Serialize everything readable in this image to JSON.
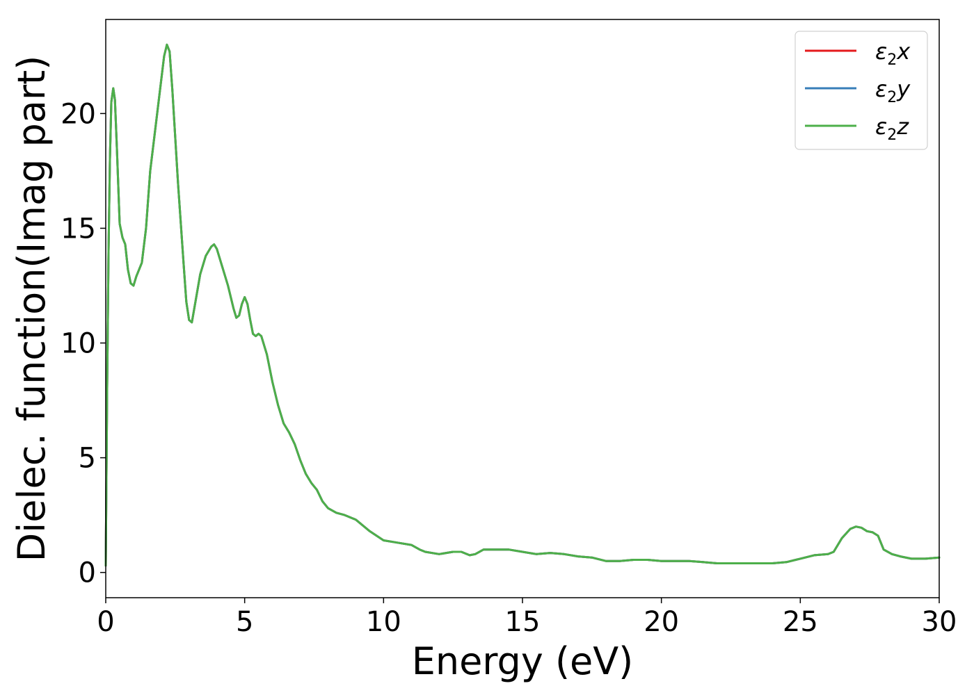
{
  "chart_data": {
    "type": "line",
    "xlabel": "Energy (eV)",
    "ylabel": "Dielec. function(Imag part)",
    "xlim": [
      0,
      30
    ],
    "ylim": [
      -1.1,
      24.1
    ],
    "xticks": [
      0,
      5,
      10,
      15,
      20,
      25,
      30
    ],
    "yticks": [
      0,
      5,
      10,
      15,
      20
    ],
    "grid": false,
    "legend_position": "top-right",
    "series": [
      {
        "name": "ε2x",
        "name_base": "ε",
        "name_sub": "2",
        "name_var": "x",
        "color": "#e41a1c",
        "points": []
      },
      {
        "name": "ε2y",
        "name_base": "ε",
        "name_sub": "2",
        "name_var": "y",
        "color": "#377eb8",
        "points": []
      },
      {
        "name": "ε2z",
        "name_base": "ε",
        "name_sub": "2",
        "name_var": "z",
        "color": "#4daf4a",
        "points": [
          [
            0,
            0.3
          ],
          [
            0.05,
            8.0
          ],
          [
            0.1,
            14.0
          ],
          [
            0.15,
            18.0
          ],
          [
            0.2,
            20.5
          ],
          [
            0.27,
            21.1
          ],
          [
            0.33,
            20.6
          ],
          [
            0.4,
            18.5
          ],
          [
            0.5,
            15.2
          ],
          [
            0.6,
            14.6
          ],
          [
            0.7,
            14.3
          ],
          [
            0.8,
            13.2
          ],
          [
            0.9,
            12.6
          ],
          [
            1.0,
            12.5
          ],
          [
            1.1,
            12.9
          ],
          [
            1.3,
            13.5
          ],
          [
            1.45,
            15.0
          ],
          [
            1.6,
            17.5
          ],
          [
            1.8,
            19.5
          ],
          [
            2.0,
            21.5
          ],
          [
            2.1,
            22.5
          ],
          [
            2.2,
            23.0
          ],
          [
            2.3,
            22.7
          ],
          [
            2.4,
            21.0
          ],
          [
            2.6,
            17.0
          ],
          [
            2.8,
            13.5
          ],
          [
            2.9,
            11.8
          ],
          [
            3.0,
            11.0
          ],
          [
            3.1,
            10.9
          ],
          [
            3.2,
            11.6
          ],
          [
            3.4,
            13.0
          ],
          [
            3.6,
            13.8
          ],
          [
            3.8,
            14.2
          ],
          [
            3.9,
            14.3
          ],
          [
            4.0,
            14.1
          ],
          [
            4.2,
            13.3
          ],
          [
            4.4,
            12.5
          ],
          [
            4.6,
            11.5
          ],
          [
            4.7,
            11.1
          ],
          [
            4.8,
            11.2
          ],
          [
            4.9,
            11.7
          ],
          [
            5.0,
            12.0
          ],
          [
            5.1,
            11.7
          ],
          [
            5.2,
            11.0
          ],
          [
            5.3,
            10.4
          ],
          [
            5.4,
            10.3
          ],
          [
            5.5,
            10.4
          ],
          [
            5.6,
            10.3
          ],
          [
            5.8,
            9.5
          ],
          [
            6.0,
            8.3
          ],
          [
            6.2,
            7.3
          ],
          [
            6.4,
            6.5
          ],
          [
            6.6,
            6.1
          ],
          [
            6.8,
            5.6
          ],
          [
            7.0,
            4.9
          ],
          [
            7.2,
            4.3
          ],
          [
            7.4,
            3.9
          ],
          [
            7.6,
            3.6
          ],
          [
            7.8,
            3.1
          ],
          [
            8.0,
            2.8
          ],
          [
            8.3,
            2.6
          ],
          [
            8.6,
            2.5
          ],
          [
            9.0,
            2.3
          ],
          [
            9.5,
            1.8
          ],
          [
            10.0,
            1.4
          ],
          [
            10.5,
            1.3
          ],
          [
            11.0,
            1.2
          ],
          [
            11.3,
            1.0
          ],
          [
            11.5,
            0.9
          ],
          [
            12.0,
            0.8
          ],
          [
            12.5,
            0.9
          ],
          [
            12.8,
            0.9
          ],
          [
            13.1,
            0.75
          ],
          [
            13.3,
            0.8
          ],
          [
            13.6,
            1.0
          ],
          [
            14.0,
            1.0
          ],
          [
            14.5,
            1.0
          ],
          [
            15.0,
            0.9
          ],
          [
            15.5,
            0.8
          ],
          [
            16.0,
            0.85
          ],
          [
            16.5,
            0.8
          ],
          [
            17.0,
            0.7
          ],
          [
            17.5,
            0.65
          ],
          [
            18.0,
            0.5
          ],
          [
            18.5,
            0.5
          ],
          [
            19.0,
            0.55
          ],
          [
            19.5,
            0.55
          ],
          [
            20.0,
            0.5
          ],
          [
            20.5,
            0.5
          ],
          [
            21.0,
            0.5
          ],
          [
            21.5,
            0.45
          ],
          [
            22.0,
            0.4
          ],
          [
            22.5,
            0.4
          ],
          [
            23.0,
            0.4
          ],
          [
            23.5,
            0.4
          ],
          [
            24.0,
            0.4
          ],
          [
            24.5,
            0.45
          ],
          [
            25.0,
            0.6
          ],
          [
            25.5,
            0.75
          ],
          [
            26.0,
            0.8
          ],
          [
            26.2,
            0.9
          ],
          [
            26.5,
            1.5
          ],
          [
            26.8,
            1.9
          ],
          [
            27.0,
            2.0
          ],
          [
            27.2,
            1.95
          ],
          [
            27.4,
            1.8
          ],
          [
            27.6,
            1.75
          ],
          [
            27.8,
            1.6
          ],
          [
            28.0,
            1.0
          ],
          [
            28.3,
            0.8
          ],
          [
            28.6,
            0.7
          ],
          [
            29.0,
            0.6
          ],
          [
            29.5,
            0.6
          ],
          [
            30.0,
            0.65
          ]
        ]
      }
    ]
  }
}
